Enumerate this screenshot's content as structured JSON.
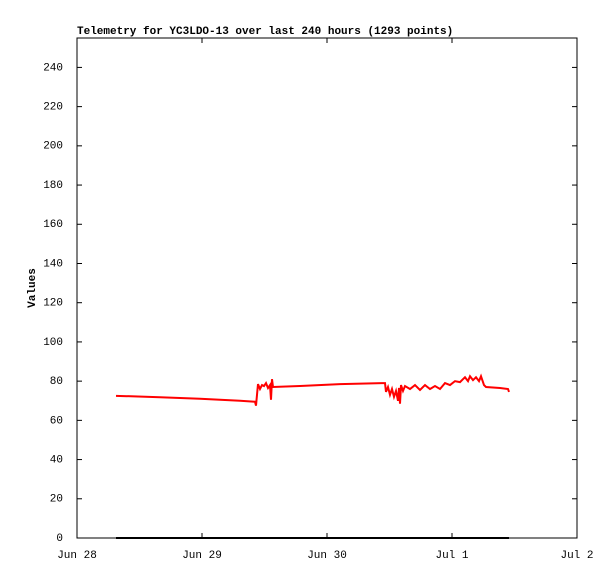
{
  "chart_data": {
    "type": "line",
    "title": "Telemetry for YC3LDO-13 over last 240 hours (1293 points)",
    "y_label": "Values",
    "xlim": [
      0,
      4
    ],
    "xticks": [
      {
        "value": 0,
        "label": "Jun 28"
      },
      {
        "value": 1,
        "label": "Jun 29"
      },
      {
        "value": 2,
        "label": "Jun 30"
      },
      {
        "value": 3,
        "label": "Jul 1"
      },
      {
        "value": 4,
        "label": "Jul 2"
      }
    ],
    "ylim": [
      0,
      255
    ],
    "yticks": [
      0,
      20,
      40,
      60,
      80,
      100,
      120,
      140,
      160,
      180,
      200,
      220,
      240
    ],
    "series": [
      {
        "color": "#ff0000",
        "x": [
          0.312,
          0.664,
          0.984,
          1.304,
          1.424,
          1.432,
          1.448,
          1.464,
          1.48,
          1.496,
          1.512,
          1.528,
          1.544,
          1.552,
          1.56,
          1.568,
          1.784,
          2.104,
          2.464,
          2.472,
          2.488,
          2.504,
          2.52,
          2.536,
          2.552,
          2.568,
          2.576,
          2.584,
          2.592,
          2.608,
          2.624,
          2.664,
          2.704,
          2.744,
          2.784,
          2.824,
          2.864,
          2.904,
          2.944,
          2.984,
          3.024,
          3.064,
          3.104,
          3.128,
          3.144,
          3.168,
          3.192,
          3.216,
          3.232,
          3.256,
          3.272,
          3.384,
          3.448,
          3.456
        ],
        "values": [
          72.5,
          71.8,
          71,
          70,
          69.5,
          67.5,
          78.5,
          76,
          78,
          77.5,
          79,
          76.5,
          78,
          70.5,
          81,
          77,
          77.5,
          78.5,
          79,
          74.5,
          77,
          73,
          76,
          72,
          75,
          70,
          76.5,
          68.5,
          78,
          75,
          77.5,
          76,
          78,
          75.5,
          78,
          76,
          77.5,
          76,
          79,
          78,
          80,
          79.5,
          82,
          80,
          82.5,
          80.5,
          82,
          80,
          82.5,
          78,
          77,
          76.5,
          76,
          74.5
        ]
      },
      {
        "color": "#000000",
        "x": [
          0.312,
          3.456
        ],
        "values": [
          0,
          0
        ]
      }
    ]
  }
}
